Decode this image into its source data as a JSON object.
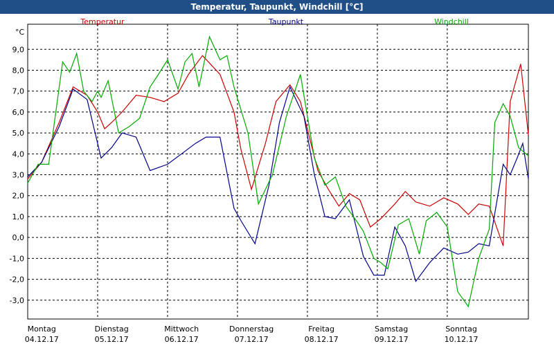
{
  "chart_data": {
    "type": "line",
    "title": "Temperatur, Taupunkt, Windchill [°C]",
    "ylabel": "°C",
    "ylim": [
      -3.9,
      10.2
    ],
    "yticks": [
      9.0,
      8.0,
      7.0,
      6.0,
      5.0,
      4.0,
      3.0,
      2.0,
      1.0,
      0.0,
      -1.0,
      -2.0,
      -3.0
    ],
    "ytick_labels": [
      "9,0",
      "8,0",
      "7,0",
      "6,0",
      "5,0",
      "4,0",
      "3,0",
      "2,0",
      "1,0",
      "0,0",
      "-1,0",
      "-2,0",
      "-3,0"
    ],
    "x_days": [
      {
        "day": "Montag",
        "date": "04.12.17"
      },
      {
        "day": "Dienstag",
        "date": "05.12.17"
      },
      {
        "day": "Mittwoch",
        "date": "06.12.17"
      },
      {
        "day": "Donnerstag",
        "date": "07.12.17"
      },
      {
        "day": "Freitag",
        "date": "08.12.17"
      },
      {
        "day": "Samstag",
        "date": "09.12.17"
      },
      {
        "day": "Sonntag",
        "date": "10.12.17"
      }
    ],
    "xlim": [
      0,
      7.16
    ],
    "grid": true,
    "legend_position": "top",
    "series": [
      {
        "name": "Temperatur",
        "color": "#cc0000",
        "x": [
          0,
          0.2,
          0.45,
          0.65,
          0.85,
          1.0,
          1.1,
          1.2,
          1.35,
          1.55,
          1.75,
          1.95,
          2.15,
          2.3,
          2.5,
          2.75,
          2.95,
          3.05,
          3.2,
          3.4,
          3.55,
          3.75,
          3.9,
          4.05,
          4.15,
          4.3,
          4.45,
          4.6,
          4.75,
          4.9,
          5.05,
          5.25,
          5.4,
          5.55,
          5.75,
          5.95,
          6.15,
          6.3,
          6.45,
          6.6,
          6.8,
          6.9,
          7.05,
          7.16
        ],
        "y": [
          2.8,
          3.6,
          5.5,
          7.2,
          6.8,
          6.0,
          5.2,
          5.5,
          6.0,
          6.8,
          6.7,
          6.5,
          6.9,
          7.8,
          8.7,
          7.8,
          6.0,
          4.2,
          2.3,
          4.5,
          6.5,
          7.3,
          6.5,
          4.5,
          3.2,
          2.3,
          1.5,
          2.1,
          1.8,
          0.5,
          0.9,
          1.6,
          2.2,
          1.7,
          1.5,
          1.9,
          1.6,
          1.1,
          1.6,
          1.5,
          -0.4,
          6.5,
          8.3,
          4.9
        ]
      },
      {
        "name": "Taupunkt",
        "color": "#00008b",
        "x": [
          0,
          0.2,
          0.45,
          0.65,
          0.85,
          0.95,
          1.05,
          1.2,
          1.35,
          1.55,
          1.75,
          2.0,
          2.2,
          2.4,
          2.55,
          2.75,
          2.95,
          3.05,
          3.25,
          3.45,
          3.6,
          3.75,
          3.95,
          4.1,
          4.25,
          4.4,
          4.6,
          4.8,
          4.95,
          5.1,
          5.25,
          5.4,
          5.55,
          5.75,
          5.95,
          6.15,
          6.3,
          6.45,
          6.6,
          6.8,
          6.9,
          7.0,
          7.08,
          7.16
        ],
        "y": [
          2.9,
          3.6,
          5.3,
          7.1,
          6.6,
          5.2,
          3.8,
          4.3,
          5.0,
          4.8,
          3.2,
          3.5,
          4.0,
          4.5,
          4.8,
          4.8,
          1.4,
          0.8,
          -0.3,
          2.5,
          5.5,
          7.2,
          5.8,
          3.0,
          1.0,
          0.9,
          1.8,
          -0.9,
          -1.8,
          -1.8,
          0.5,
          -0.4,
          -2.1,
          -1.2,
          -0.5,
          -0.8,
          -0.7,
          -0.3,
          -0.4,
          3.5,
          3.0,
          3.8,
          4.5,
          2.8
        ]
      },
      {
        "name": "Windchill",
        "color": "#00aa00",
        "x": [
          0,
          0.15,
          0.3,
          0.5,
          0.6,
          0.7,
          0.8,
          0.92,
          1.0,
          1.05,
          1.15,
          1.3,
          1.45,
          1.6,
          1.75,
          1.85,
          2.0,
          2.15,
          2.25,
          2.35,
          2.45,
          2.6,
          2.75,
          2.85,
          2.95,
          3.05,
          3.15,
          3.3,
          3.5,
          3.7,
          3.8,
          3.9,
          4.0,
          4.1,
          4.25,
          4.4,
          4.55,
          4.7,
          4.8,
          4.95,
          5.05,
          5.15,
          5.3,
          5.45,
          5.6,
          5.7,
          5.85,
          6.0,
          6.15,
          6.3,
          6.45,
          6.6,
          6.68,
          6.8,
          6.9,
          7.02,
          7.16
        ],
        "y": [
          2.6,
          3.5,
          3.5,
          8.4,
          7.9,
          8.8,
          7.0,
          6.5,
          7.0,
          6.7,
          7.5,
          5.0,
          5.3,
          5.7,
          7.2,
          7.7,
          8.5,
          7.1,
          8.4,
          8.8,
          7.2,
          9.6,
          8.5,
          8.7,
          7.2,
          6.1,
          5.0,
          1.6,
          3.0,
          5.8,
          6.8,
          7.8,
          5.8,
          3.8,
          2.5,
          2.9,
          1.5,
          0.8,
          0.3,
          -1.0,
          -1.2,
          -1.5,
          0.6,
          0.9,
          -0.8,
          0.8,
          1.2,
          0.5,
          -2.6,
          -3.3,
          -1.0,
          0.4,
          5.5,
          6.4,
          5.8,
          4.3,
          3.9
        ]
      }
    ]
  }
}
